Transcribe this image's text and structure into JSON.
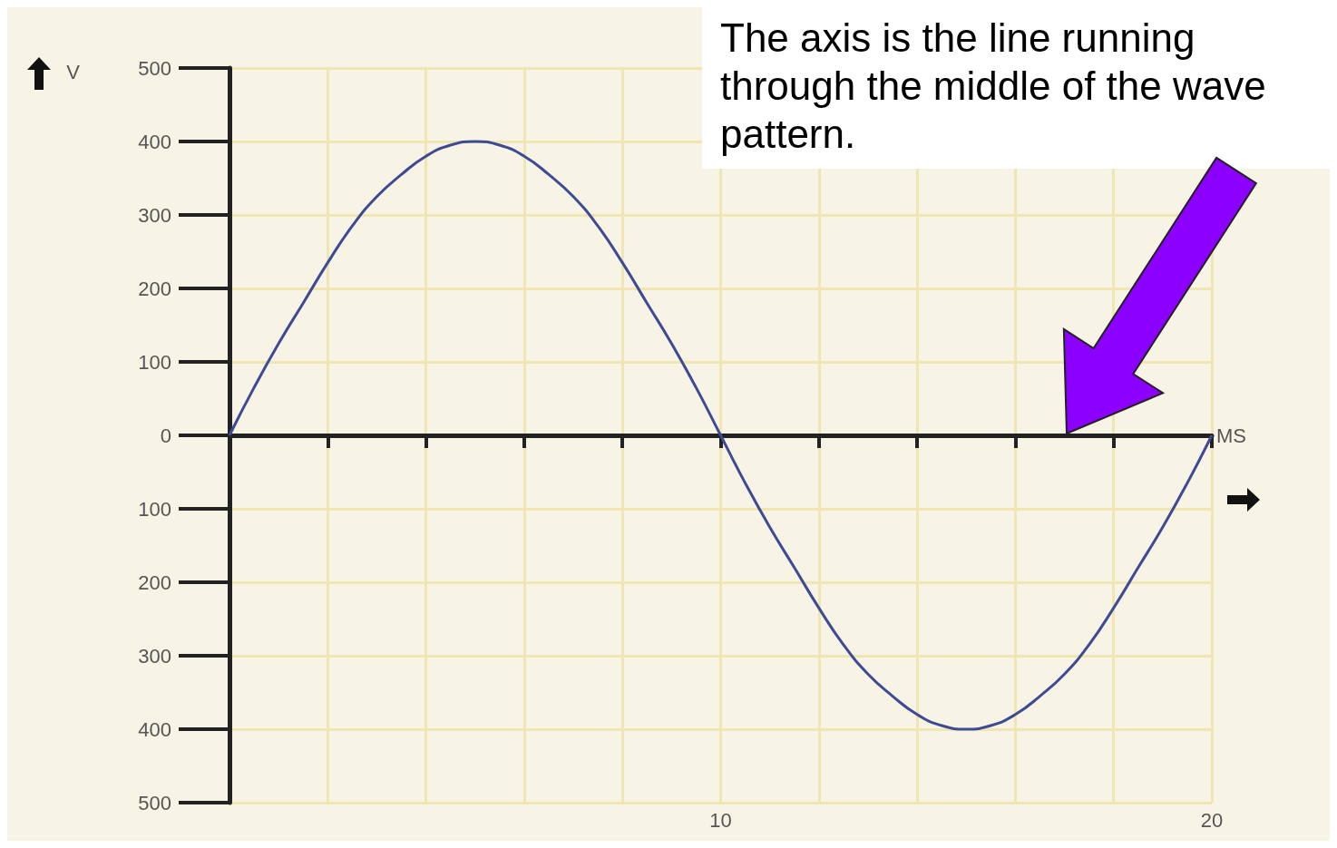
{
  "chart_data": {
    "type": "line",
    "xlabel": "MS",
    "ylabel": "V",
    "x": [
      0,
      0.5,
      1,
      1.5,
      2,
      2.5,
      3,
      3.5,
      4,
      4.5,
      5,
      5.5,
      6,
      6.5,
      7,
      7.5,
      8,
      8.5,
      9,
      9.5,
      10,
      10.5,
      11,
      11.5,
      12,
      12.5,
      13,
      13.5,
      14,
      14.5,
      15,
      15.5,
      16,
      16.5,
      17,
      17.5,
      18,
      18.5,
      19,
      19.5,
      20
    ],
    "series": [
      {
        "color": "#3f4a94",
        "values": [
          0,
          65,
          125,
          180,
          235,
          285,
          325,
          355,
          380,
          395,
          400,
          395,
          380,
          355,
          325,
          285,
          235,
          180,
          125,
          65,
          0,
          -65,
          -125,
          -180,
          -235,
          -285,
          -325,
          -355,
          -380,
          -395,
          -400,
          -395,
          -380,
          -355,
          -325,
          -285,
          -235,
          -180,
          -125,
          -65,
          0
        ]
      }
    ],
    "xlim": [
      0,
      20
    ],
    "xticks": [
      {
        "value": 0,
        "label": null
      },
      {
        "value": 2,
        "label": null
      },
      {
        "value": 4,
        "label": null
      },
      {
        "value": 6,
        "label": null
      },
      {
        "value": 8,
        "label": null
      },
      10,
      {
        "value": 12,
        "label": null
      },
      {
        "value": 14,
        "label": null
      },
      {
        "value": 16,
        "label": null
      },
      {
        "value": 18,
        "label": null
      },
      20
    ],
    "ylim": [
      -500,
      500
    ],
    "yticks": [
      {
        "value": -500,
        "label": "500"
      },
      {
        "value": -400,
        "label": "400"
      },
      {
        "value": -300,
        "label": "300"
      },
      {
        "value": -200,
        "label": "200"
      },
      {
        "value": -100,
        "label": "100"
      },
      0,
      100,
      200,
      300,
      400,
      500
    ],
    "grid": true,
    "marker": "none",
    "line_style": "solid",
    "annotations": [
      "The axis is the line running through the middle of the wave pattern."
    ]
  }
}
